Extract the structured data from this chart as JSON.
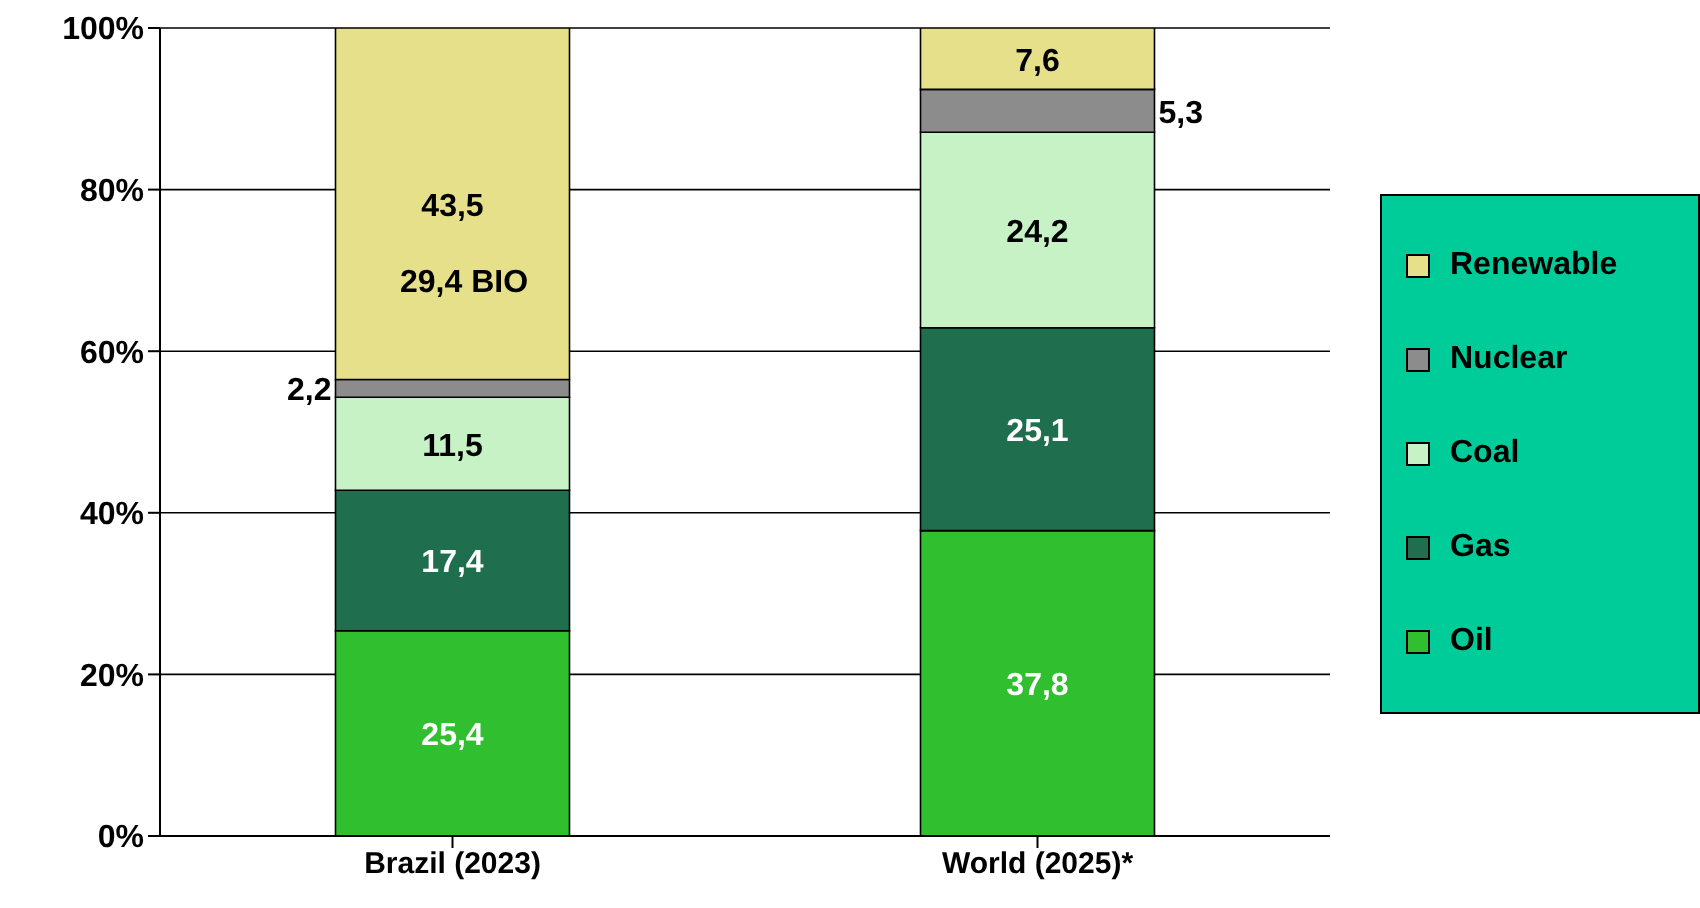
{
  "chart_data": {
    "type": "bar",
    "stacked": true,
    "categories": [
      "Brazil (2023)",
      "World (2025)*"
    ],
    "series": [
      {
        "name": "Oil",
        "color": "#2fbf2f",
        "values": [
          25.4,
          37.8
        ],
        "value_labels": [
          "25,4",
          "37,8"
        ]
      },
      {
        "name": "Gas",
        "color": "#1f6e4e",
        "values": [
          17.4,
          25.1
        ],
        "value_labels": [
          "17,4",
          "25,1"
        ]
      },
      {
        "name": "Coal",
        "color": "#c6f2c6",
        "values": [
          11.5,
          24.2
        ],
        "value_labels": [
          "11,5",
          "24,2"
        ]
      },
      {
        "name": "Nuclear",
        "color": "#8c8c8c",
        "values": [
          2.2,
          5.3
        ],
        "value_labels": [
          "2,2",
          "5,3"
        ]
      },
      {
        "name": "Renewable",
        "color": "#e6e08a",
        "values": [
          43.5,
          7.6
        ],
        "value_labels": [
          "43,5",
          "7,6"
        ]
      }
    ],
    "ylim": [
      0,
      100
    ],
    "yticks": [
      {
        "value": 0,
        "label": "0%"
      },
      {
        "value": 20,
        "label": "20%"
      },
      {
        "value": 40,
        "label": "40%"
      },
      {
        "value": 60,
        "label": "60%"
      },
      {
        "value": 80,
        "label": "80%"
      },
      {
        "value": 100,
        "label": "100%"
      }
    ],
    "grid": "y",
    "legend": "right",
    "annotations": [
      "29,4 BIO"
    ]
  }
}
